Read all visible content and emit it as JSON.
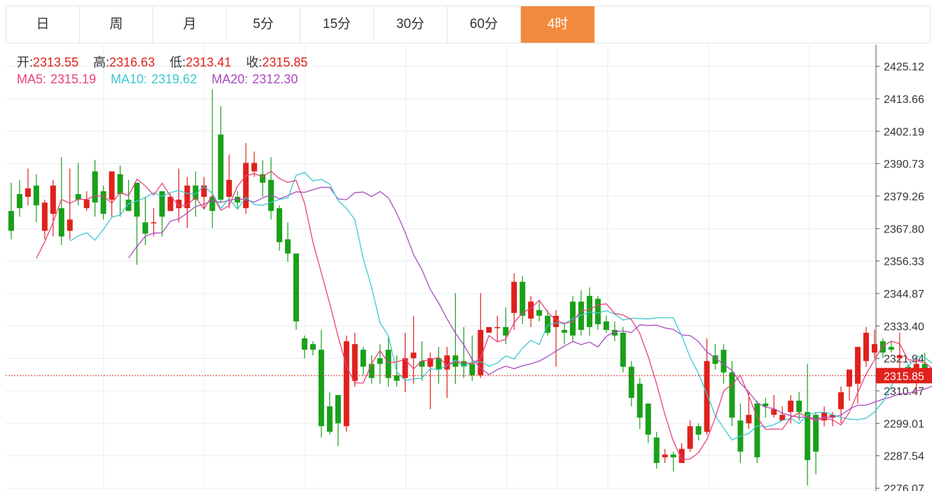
{
  "tabs": [
    {
      "label": "日",
      "active": false
    },
    {
      "label": "周",
      "active": false
    },
    {
      "label": "月",
      "active": false
    },
    {
      "label": "5分",
      "active": false
    },
    {
      "label": "15分",
      "active": false
    },
    {
      "label": "30分",
      "active": false
    },
    {
      "label": "60分",
      "active": false
    },
    {
      "label": "4时",
      "active": true
    }
  ],
  "ohlc": {
    "open_label": "开:",
    "open": "2313.55",
    "high_label": "高:",
    "high": "2316.63",
    "low_label": "低:",
    "low": "2313.41",
    "close_label": "收:",
    "close": "2315.85"
  },
  "ma": {
    "ma5_label": "MA5:",
    "ma5": "2315.19",
    "ma10_label": "MA10:",
    "ma10": "2319.62",
    "ma20_label": "MA20:",
    "ma20": "2312.30"
  },
  "colors": {
    "up": "#e0211c",
    "down": "#1aa01a",
    "ma5": "#e8427c",
    "ma10": "#3cc8d0",
    "ma20": "#a94bbf",
    "accent": "#f28a3e",
    "grid": "#e6edf3"
  },
  "chart_data": {
    "type": "candlestick",
    "y_ticks": [
      2425.12,
      2413.66,
      2402.19,
      2390.73,
      2379.26,
      2367.8,
      2356.33,
      2344.87,
      2333.4,
      2321.94,
      2310.47,
      2299.01,
      2287.54,
      2276.07
    ],
    "ylim": [
      2275.1,
      2432.7
    ],
    "current_price": "2315.85",
    "candles": [
      [
        2374,
        2367,
        2384,
        2364
      ],
      [
        2380,
        2375,
        2385,
        2372
      ],
      [
        2379,
        2382,
        2389,
        2376
      ],
      [
        2383,
        2376,
        2387,
        2370
      ],
      [
        2367,
        2377,
        2378,
        2364
      ],
      [
        2373,
        2383,
        2385,
        2365
      ],
      [
        2375,
        2365,
        2393,
        2362
      ],
      [
        2367,
        2371,
        2389,
        2364
      ],
      [
        2380,
        2378,
        2391,
        2376
      ],
      [
        2375,
        2378,
        2381,
        2374
      ],
      [
        2388,
        2377,
        2392,
        2372
      ],
      [
        2381,
        2373,
        2383,
        2371
      ],
      [
        2378,
        2388,
        2388,
        2372
      ],
      [
        2387,
        2380,
        2390,
        2372
      ],
      [
        2378,
        2374,
        2385,
        2374
      ],
      [
        2384,
        2372,
        2384,
        2355
      ],
      [
        2370,
        2366,
        2379,
        2362
      ],
      [
        2370,
        2370,
        2375,
        2365
      ],
      [
        2381,
        2372,
        2381,
        2365
      ],
      [
        2374,
        2379,
        2380,
        2374
      ],
      [
        2375,
        2378,
        2389,
        2370
      ],
      [
        2375,
        2383,
        2386,
        2368
      ],
      [
        2383,
        2378,
        2388,
        2372
      ],
      [
        2379,
        2383,
        2386,
        2375
      ],
      [
        2379,
        2374,
        2417,
        2368
      ],
      [
        2401,
        2378,
        2411,
        2377
      ],
      [
        2379,
        2385,
        2394,
        2375
      ],
      [
        2379,
        2377,
        2381,
        2375
      ],
      [
        2375,
        2391,
        2398,
        2373
      ],
      [
        2388,
        2391,
        2395,
        2386
      ],
      [
        2387,
        2384,
        2392,
        2379
      ],
      [
        2385,
        2374,
        2393,
        2371
      ],
      [
        2375,
        2363,
        2376,
        2360
      ],
      [
        2364,
        2359,
        2370,
        2356
      ],
      [
        2359,
        2335,
        2359,
        2332
      ],
      [
        2329,
        2325,
        2330,
        2322
      ],
      [
        2327,
        2325,
        2328,
        2323
      ],
      [
        2325,
        2298,
        2332,
        2294
      ],
      [
        2305,
        2296,
        2310,
        2295
      ],
      [
        2309,
        2299,
        2309,
        2291
      ],
      [
        2298,
        2328,
        2330,
        2296
      ],
      [
        2314,
        2327,
        2331,
        2312
      ],
      [
        2325,
        2319,
        2326,
        2316
      ],
      [
        2320,
        2315,
        2323,
        2313
      ],
      [
        2322,
        2320,
        2327,
        2313
      ],
      [
        2325,
        2315,
        2330,
        2312
      ],
      [
        2316,
        2314,
        2323,
        2312
      ],
      [
        2315,
        2322,
        2331,
        2310
      ],
      [
        2322,
        2324,
        2337,
        2313
      ],
      [
        2321,
        2319,
        2328,
        2314
      ],
      [
        2319,
        2322,
        2324,
        2304
      ],
      [
        2322,
        2318,
        2326,
        2313
      ],
      [
        2318,
        2323,
        2326,
        2308
      ],
      [
        2323,
        2319,
        2345,
        2313
      ],
      [
        2321,
        2319,
        2333,
        2315
      ],
      [
        2320,
        2316,
        2330,
        2314
      ],
      [
        2316,
        2332,
        2345,
        2315
      ],
      [
        2331,
        2333,
        2333,
        2331
      ],
      [
        2333,
        2333,
        2337,
        2328
      ],
      [
        2333,
        2330,
        2340,
        2327
      ],
      [
        2338,
        2349,
        2352,
        2332
      ],
      [
        2349,
        2337,
        2351,
        2334
      ],
      [
        2336,
        2342,
        2344,
        2333
      ],
      [
        2339,
        2337,
        2342,
        2335
      ],
      [
        2337,
        2331,
        2339,
        2330
      ],
      [
        2333,
        2337,
        2339,
        2319
      ],
      [
        2332,
        2331,
        2334,
        2327
      ],
      [
        2342,
        2330,
        2344,
        2328
      ],
      [
        2342,
        2332,
        2346,
        2330
      ],
      [
        2344,
        2333,
        2347,
        2330
      ],
      [
        2343,
        2334,
        2344,
        2332
      ],
      [
        2335,
        2332,
        2337,
        2331
      ],
      [
        2332,
        2330,
        2335,
        2328
      ],
      [
        2331,
        2319,
        2333,
        2317
      ],
      [
        2319,
        2308,
        2321,
        2305
      ],
      [
        2313,
        2301,
        2315,
        2297
      ],
      [
        2306,
        2295,
        2306,
        2292
      ],
      [
        2294,
        2285,
        2296,
        2283
      ],
      [
        2287,
        2288,
        2290,
        2285
      ],
      [
        2288,
        2287,
        2289,
        2282
      ],
      [
        2285,
        2290,
        2292,
        2286
      ],
      [
        2290,
        2298,
        2300,
        2289
      ],
      [
        2298,
        2295,
        2299,
        2293
      ],
      [
        2296,
        2321,
        2329,
        2295
      ],
      [
        2323,
        2320,
        2327,
        2318
      ],
      [
        2325,
        2317,
        2327,
        2313
      ],
      [
        2317,
        2301,
        2321,
        2298
      ],
      [
        2300,
        2289,
        2306,
        2285
      ],
      [
        2299,
        2302,
        2310,
        2297
      ],
      [
        2306,
        2287,
        2307,
        2285
      ],
      [
        2306,
        2305,
        2308,
        2301
      ],
      [
        2302,
        2304,
        2309,
        2301
      ],
      [
        2300,
        2302,
        2305,
        2300
      ],
      [
        2303,
        2307,
        2309,
        2299
      ],
      [
        2307,
        2303,
        2310,
        2300
      ],
      [
        2303,
        2286,
        2320,
        2277
      ],
      [
        2302,
        2289,
        2303,
        2281
      ],
      [
        2300,
        2303,
        2305,
        2298
      ],
      [
        2301,
        2302,
        2303,
        2298
      ],
      [
        2304,
        2310,
        2312,
        2299
      ],
      [
        2312,
        2318,
        2318,
        2307
      ],
      [
        2313,
        2326,
        2326,
        2306
      ],
      [
        2321,
        2331,
        2333,
        2319
      ],
      [
        2324,
        2327,
        2332,
        2322
      ],
      [
        2328,
        2324,
        2329,
        2322
      ],
      [
        2326,
        2325,
        2328,
        2324
      ],
      [
        2322,
        2323,
        2331,
        2318
      ],
      [
        2319,
        2315,
        2320,
        2313
      ],
      [
        2316,
        2320,
        2323,
        2309
      ],
      [
        2320,
        2315,
        2324,
        2313
      ],
      [
        2316,
        2317,
        2317,
        2315
      ],
      [
        2314,
        2317,
        2317,
        2314
      ]
    ],
    "ma5": [
      2357.3,
      2363.1,
      2370.0,
      2378.1,
      2376.7,
      2378.1,
      2378.1,
      2379.4,
      2379.2,
      2376.8,
      2380.5,
      2379.4,
      2385.2,
      2382.9,
      2379.6,
      2383.8,
      2379.3,
      2375.9,
      2376.1,
      2378.8,
      2374.7,
      2379.6,
      2374.2,
      2375.9,
      2382.8,
      2386.4,
      2387.2,
      2386.1,
      2388.1,
      2385.5,
      2384.1,
      2384.8,
      2376.7,
      2363.0,
      2352.2,
      2341.3,
      2329.7,
      2319.2,
      2313.3,
      2313.2,
      2320.1,
      2324.7,
      2320.4,
      2320.7,
      2321.7,
      2318.2,
      2321.1,
      2321.4,
      2322.3,
      2319.4,
      2320.7,
      2320.6,
      2320.0,
      2322.0,
      2330.0,
      2327.8,
      2328.7,
      2334.5,
      2338.1,
      2339.6,
      2342.5,
      2338.3,
      2335.4,
      2334.3,
      2334.9,
      2338.8,
      2339.1,
      2340.9,
      2341.2,
      2337.8,
      2337.3,
      2335.6,
      2330.7,
      2322.6,
      2312.9,
      2302.0,
      2292.7,
      2286.2,
      2286.4,
      2288.6,
      2293.3,
      2301.0,
      2310.4,
      2312.7,
      2316.0,
      2308.6,
      2301.1,
      2296.9,
      2297.0,
      2296.9,
      2301.0,
      2302.7,
      2301.2,
      2299.9,
      2300.9,
      2300.2,
      2298.4,
      2302.9,
      2309.9,
      2316.4,
      2321.4,
      2326.4,
      2328.0,
      2327.1,
      2321.5,
      2321.1,
      2320.4,
      2318.1,
      2318.0
    ],
    "ma10": [
      2363.4,
      2365.2,
      2366.3,
      2363.7,
      2367.5,
      2371.8,
      2372.6,
      2376.6,
      2377.5,
      2378.7,
      2380.5,
      2379.2,
      2380.5,
      2381.3,
      2380.2,
      2380.0,
      2382.7,
      2380.2,
      2374.9,
      2378.4,
      2374.6,
      2378.9,
      2376.3,
      2376.0,
      2377.1,
      2378.1,
      2378.6,
      2386.6,
      2387.6,
      2384.6,
      2385.2,
      2383.5,
      2377.7,
      2375.0,
      2370.9,
      2357.3,
      2347.1,
      2334.6,
      2329.9,
      2317.3,
      2314.1,
      2314.7,
      2314.9,
      2318.3,
      2317.9,
      2319.4,
      2321.3,
      2319.1,
      2320.6,
      2320.8,
      2319.2,
      2320.3,
      2322.8,
      2321.7,
      2325.6,
      2328.3,
      2326.8,
      2333.7,
      2334.5,
      2334.1,
      2336.0,
      2337.2,
      2338.3,
      2338.0,
      2338.8,
      2337.6,
      2335.5,
      2336.1,
      2336.0,
      2335.9,
      2336.3,
      2336.3,
      2336.2,
      2329.9,
      2322.3,
      2316.6,
      2309.3,
      2301.8,
      2297.3,
      2293.1,
      2294.5,
      2295.4,
      2298.2,
      2297.7,
      2298.5,
      2300.0,
      2300.8,
      2298.9,
      2302.1,
      2302.7,
      2302.9,
      2302.1,
      2301.0,
      2300.5,
      2300.3,
      2300.8,
      2303.0,
      2306.6,
      2312.2,
      2316.7,
      2318.9,
      2322.7,
      2322.3,
      2319.9,
      2319.7
    ],
    "ma20": [
      2357.4,
      2361.5,
      2365.1,
      2366.2,
      2366.3,
      2370.4,
      2371.2,
      2373.3,
      2375.6,
      2376.4,
      2377.7,
      2377.0,
      2377.8,
      2378.3,
      2378.0,
      2377.1,
      2378.6,
      2379.8,
      2378.3,
      2379.4,
      2380.8,
      2380.6,
      2381.5,
      2382.4,
      2382.3,
      2378.3,
      2378.0,
      2380.5,
      2380.7,
      2379.1,
      2380.9,
      2378.7,
      2373.2,
      2366.5,
      2358.6,
      2353.3,
      2346.3,
      2341.5,
      2335.9,
      2330.9,
      2326.7,
      2321.6,
      2318.6,
      2316.2,
      2318.0,
      2319.2,
      2318.3,
      2319.3,
      2320.0,
      2321.0,
      2322.6,
      2324.5,
      2326.3,
      2327.9,
      2326.8,
      2327.7,
      2326.0,
      2329.7,
      2331.4,
      2331.6,
      2331.1,
      2333.8,
      2333.6,
      2333.7,
      2332.7,
      2332.2,
      2330.2,
      2330.0,
      2327.9,
      2324.2,
      2322.1,
      2319.8,
      2317.7,
      2313.2,
      2310.1,
      2306.3,
      2304.7,
      2304.2,
      2302.6,
      2301.7,
      2301.1,
      2301.3,
      2300.5,
      2301.2,
      2301.2,
      2301.9,
      2304.0,
      2305.4,
      2305.4,
      2306.5,
      2307.5,
      2308.3,
      2309.5,
      2309.6,
      2310.5,
      2311.1,
      2312.3,
      2312.6
    ]
  }
}
